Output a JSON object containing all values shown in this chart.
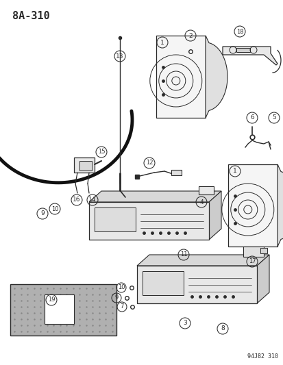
{
  "title": "8A-310",
  "footer": "94J82 310",
  "bg_color": "#ffffff",
  "title_fontsize": 11,
  "line_color": "#2a2a2a",
  "fig_w": 4.14,
  "fig_h": 5.33,
  "dpi": 100
}
